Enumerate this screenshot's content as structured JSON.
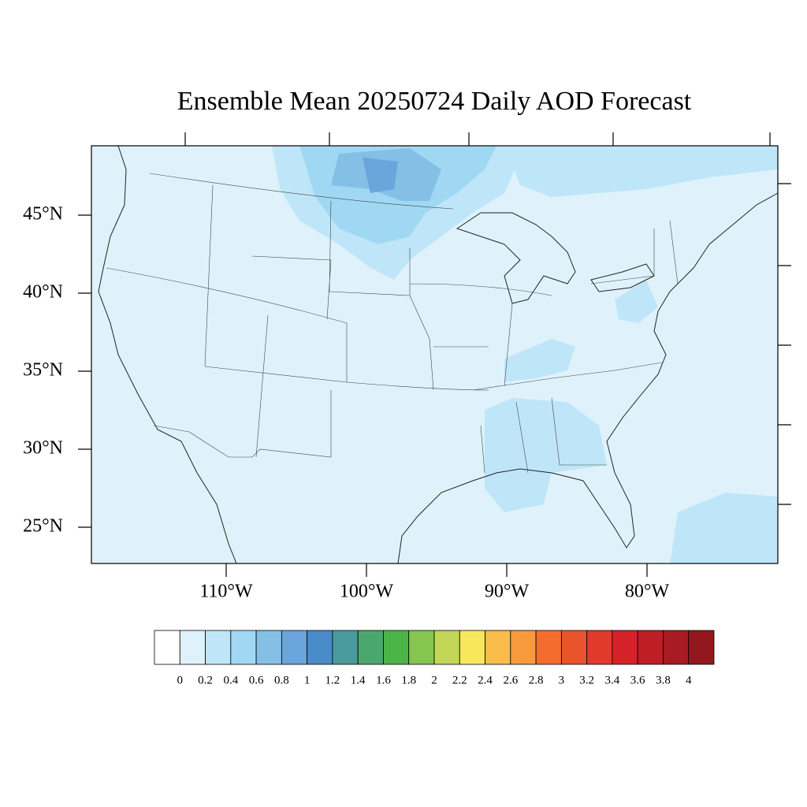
{
  "title": "Ensemble Mean 20250724 Daily AOD Forecast",
  "lat_ticks": [
    {
      "value": 45,
      "label": "45°N"
    },
    {
      "value": 40,
      "label": "40°N"
    },
    {
      "value": 35,
      "label": "35°N"
    },
    {
      "value": 30,
      "label": "30°N"
    },
    {
      "value": 25,
      "label": "25°N"
    }
  ],
  "lon_ticks": [
    {
      "value": -110,
      "label": "110°W"
    },
    {
      "value": -100,
      "label": "100°W"
    },
    {
      "value": -90,
      "label": "90°W"
    },
    {
      "value": -80,
      "label": "80°W"
    }
  ],
  "colorbar": {
    "levels": [
      0,
      0.2,
      0.4,
      0.6,
      0.8,
      1,
      1.2,
      1.4,
      1.6,
      1.8,
      2,
      2.2,
      2.4,
      2.6,
      2.8,
      3,
      3.2,
      3.4,
      3.6,
      3.8,
      4
    ],
    "colors": [
      "#ffffff",
      "#dff2fb",
      "#bfe6f8",
      "#a0d8f3",
      "#84bfe6",
      "#6aa5dc",
      "#4a8bc9",
      "#4a9b9b",
      "#4aa86e",
      "#4bb548",
      "#86c550",
      "#c3d657",
      "#f6e85a",
      "#f8bd4a",
      "#f79a3d",
      "#f46d2e",
      "#ea542c",
      "#e03a2a",
      "#d42228",
      "#bf1e25",
      "#a91b22",
      "#93181d"
    ]
  }
}
